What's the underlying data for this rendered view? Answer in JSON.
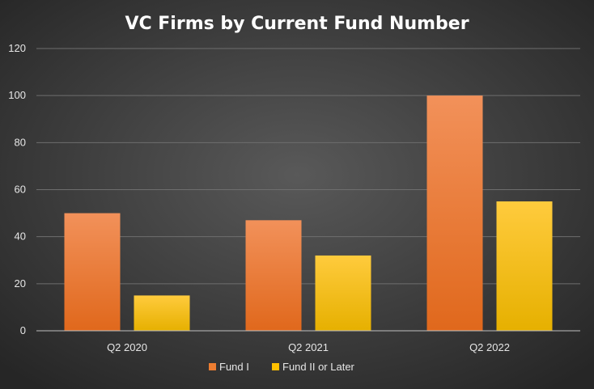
{
  "chart_data": {
    "type": "bar",
    "title": "VC Firms by Current Fund Number",
    "categories": [
      "Q2 2020",
      "Q2 2021",
      "Q2 2022"
    ],
    "series": [
      {
        "name": "Fund I",
        "values": [
          50,
          47,
          100
        ],
        "color": "#ed7d31"
      },
      {
        "name": "Fund II or Later",
        "values": [
          15,
          32,
          55
        ],
        "color": "#ffc000"
      }
    ],
    "yticks": [
      "0",
      "20",
      "40",
      "60",
      "80",
      "100",
      "120"
    ],
    "ylim": [
      0,
      120
    ],
    "xlabel": "",
    "ylabel": "",
    "grid": true,
    "legend": "bottom",
    "background": "#404040"
  }
}
